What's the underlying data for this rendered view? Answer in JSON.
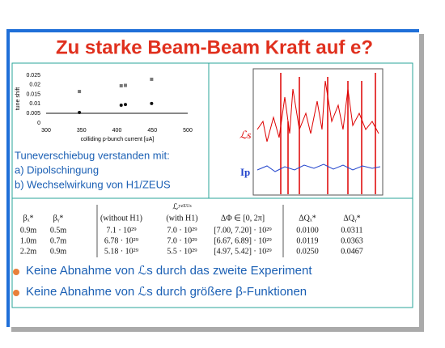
{
  "title": "Zu starke Beam-Beam Kraft auf e?",
  "plot": {
    "type": "scatter",
    "xlabel": "colliding p-bunch current [uA]",
    "ylabel": "tune shift",
    "xlim": [
      300,
      500
    ],
    "ylim": [
      0,
      0.025
    ],
    "xticks": [
      300,
      350,
      400,
      450,
      500
    ],
    "yticks": [
      0,
      0.005,
      0.01,
      0.015,
      0.02,
      0.025
    ],
    "series": [
      {
        "color": "#777777",
        "marker": "square",
        "x": [
          347,
          406,
          412,
          449
        ],
        "y": [
          0.0165,
          0.0195,
          0.0197,
          0.0229
        ]
      },
      {
        "color": "#111111",
        "marker": "circle",
        "x": [
          347,
          406,
          412,
          449
        ],
        "y": [
          0.0055,
          0.0093,
          0.0097,
          0.0102
        ]
      }
    ]
  },
  "notes": [
    "Tuneverschiebug verstanden mit:",
    "a) Dipolschingung",
    "b) Wechselwirkung von H1/ZEUS"
  ],
  "lumi_plot": {
    "labels": [
      "ℒs",
      "Ip"
    ]
  },
  "table": {
    "group_header": "ℒʸᶻᴱᵁˢ",
    "header": [
      "βₓ*",
      "βᵧ*",
      "(without H1)",
      "(with H1)",
      "ΔΦ ∈ [0, 2π]",
      "ΔQₓ*",
      "ΔQᵧ*"
    ],
    "rows": [
      [
        "0.9m",
        "0.5m",
        "7.1 · 10²⁹",
        "7.0 · 10²⁹",
        "[7.00, 7.20] · 10²⁹",
        "0.0100",
        "0.0311"
      ],
      [
        "1.0m",
        "0.7m",
        "6.78 · 10²⁹",
        "7.0 · 10²⁹",
        "[6.67, 6.89] · 10²⁹",
        "0.0119",
        "0.0363"
      ],
      [
        "2.2m",
        "0.9m",
        "5.18 · 10²⁹",
        "5.5 · 10²⁹",
        "[4.97, 5.42] · 10²⁹",
        "0.0250",
        "0.0467"
      ]
    ]
  },
  "bullets": [
    "Keine Abnahme von ℒs durch das zweite Experiment",
    "Keine Abnahme von ℒs durch größere β-Funktionen"
  ]
}
